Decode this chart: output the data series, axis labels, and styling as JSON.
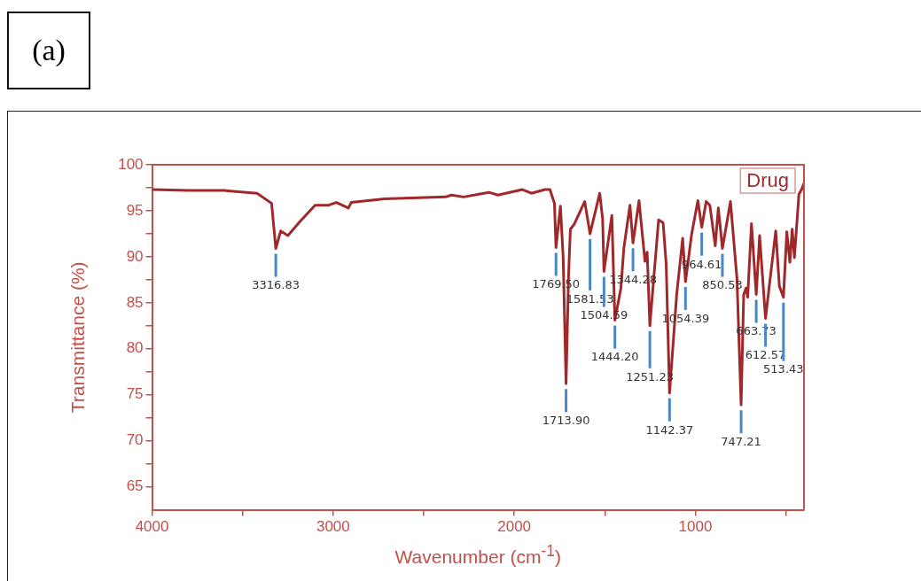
{
  "chart_data": {
    "type": "line",
    "xlabel": "Wavenumber (cm$^{-1}$)",
    "ylabel": "Transmittance (%)",
    "xlim": [
      4000,
      400
    ],
    "ylim": [
      62.5,
      100
    ],
    "xticks": [
      4000,
      {
        "value": 3500,
        "label": null
      },
      3000,
      {
        "value": 2500,
        "label": null
      },
      2000,
      {
        "value": 1500,
        "label": null
      },
      1000,
      {
        "value": 500,
        "label": null
      }
    ],
    "yticks": [
      65,
      {
        "value": 67.5,
        "label": null
      },
      70,
      {
        "value": 72.5,
        "label": null
      },
      75,
      {
        "value": 77.5,
        "label": null
      },
      80,
      {
        "value": 82.5,
        "label": null
      },
      85,
      {
        "value": 87.5,
        "label": null
      },
      90,
      {
        "value": 92.5,
        "label": null
      },
      95,
      {
        "value": 97.5,
        "label": null
      },
      100
    ],
    "legend": "top right",
    "series": [
      {
        "name": "Drug",
        "color": "#a0282a",
        "x": [
          4000,
          3800,
          3600,
          3420,
          3340,
          3316.83,
          3290,
          3250,
          3185,
          3100,
          3025,
          2983,
          2950,
          2916,
          2900,
          2715,
          2380,
          2346,
          2280,
          2140,
          2090,
          1955,
          1905,
          1830,
          1803,
          1778,
          1769.5,
          1745,
          1730,
          1713.9,
          1700,
          1690,
          1670,
          1611,
          1581.53,
          1528,
          1512,
          1504.59,
          1461,
          1444.2,
          1411,
          1395,
          1361,
          1344.28,
          1311,
          1278,
          1266,
          1251.23,
          1203,
          1178,
          1161,
          1142.37,
          1103,
          1070,
          1054.39,
          1020,
          986,
          964.61,
          940,
          920,
          890,
          873,
          850.53,
          806,
          770,
          747.21,
          733,
          720,
          711,
          690,
          663.73,
          645,
          612.57,
          556,
          536,
          513.43,
          495,
          478,
          465,
          453,
          428,
          411,
          400
        ],
        "values": [
          97.3,
          97.2,
          97.2,
          96.9,
          95.8,
          90.9,
          92.8,
          92.3,
          93.8,
          95.6,
          95.6,
          95.9,
          95.6,
          95.3,
          95.9,
          96.3,
          96.5,
          96.7,
          96.5,
          97.0,
          96.7,
          97.3,
          96.9,
          97.3,
          97.3,
          95.8,
          91.0,
          95.5,
          90,
          76.2,
          88,
          93,
          93.5,
          96.0,
          92.5,
          96.9,
          94.1,
          88.4,
          94.5,
          83.1,
          86.6,
          90.9,
          95.6,
          91.5,
          96.1,
          89.5,
          90.5,
          82.5,
          94.0,
          93.7,
          89.2,
          75.2,
          85.9,
          92.0,
          87.3,
          92.5,
          96.1,
          93.2,
          96.0,
          95.6,
          91.2,
          95.3,
          90.9,
          96.0,
          87.6,
          73.9,
          85.9,
          86.6,
          85.6,
          93.6,
          85.9,
          92.3,
          83.3,
          92.8,
          86.8,
          85.6,
          92.7,
          89.4,
          93.0,
          89.9,
          96.8,
          97.4,
          98.0
        ]
      }
    ],
    "annotations": [
      "(a)",
      {
        "text": "3316.83",
        "x": 3316.83,
        "y": 90.9
      },
      {
        "text": "1769.50",
        "x": 1769.5,
        "y": 91.0
      },
      {
        "text": "1713.90",
        "x": 1713.9,
        "y": 76.2
      },
      {
        "text": "1581.53",
        "x": 1581.53,
        "y": 92.5
      },
      {
        "text": "1504.59",
        "x": 1504.59,
        "y": 88.4
      },
      {
        "text": "1444.20",
        "x": 1444.2,
        "y": 83.1
      },
      {
        "text": "1344.28",
        "x": 1344.28,
        "y": 91.5
      },
      {
        "text": "1251.23",
        "x": 1251.23,
        "y": 82.5
      },
      {
        "text": "1142.37",
        "x": 1142.37,
        "y": 75.2
      },
      {
        "text": "1054.39",
        "x": 1054.39,
        "y": 87.3
      },
      {
        "text": "964.61",
        "x": 964.61,
        "y": 93.2
      },
      {
        "text": "850.53",
        "x": 850.53,
        "y": 90.9
      },
      {
        "text": "747.21",
        "x": 747.21,
        "y": 73.9
      },
      {
        "text": "663.73",
        "x": 663.73,
        "y": 85.9
      },
      {
        "text": "612.57",
        "x": 612.57,
        "y": 83.3
      },
      {
        "text": "513.43",
        "x": 513.43,
        "y": 85.6
      }
    ]
  }
}
